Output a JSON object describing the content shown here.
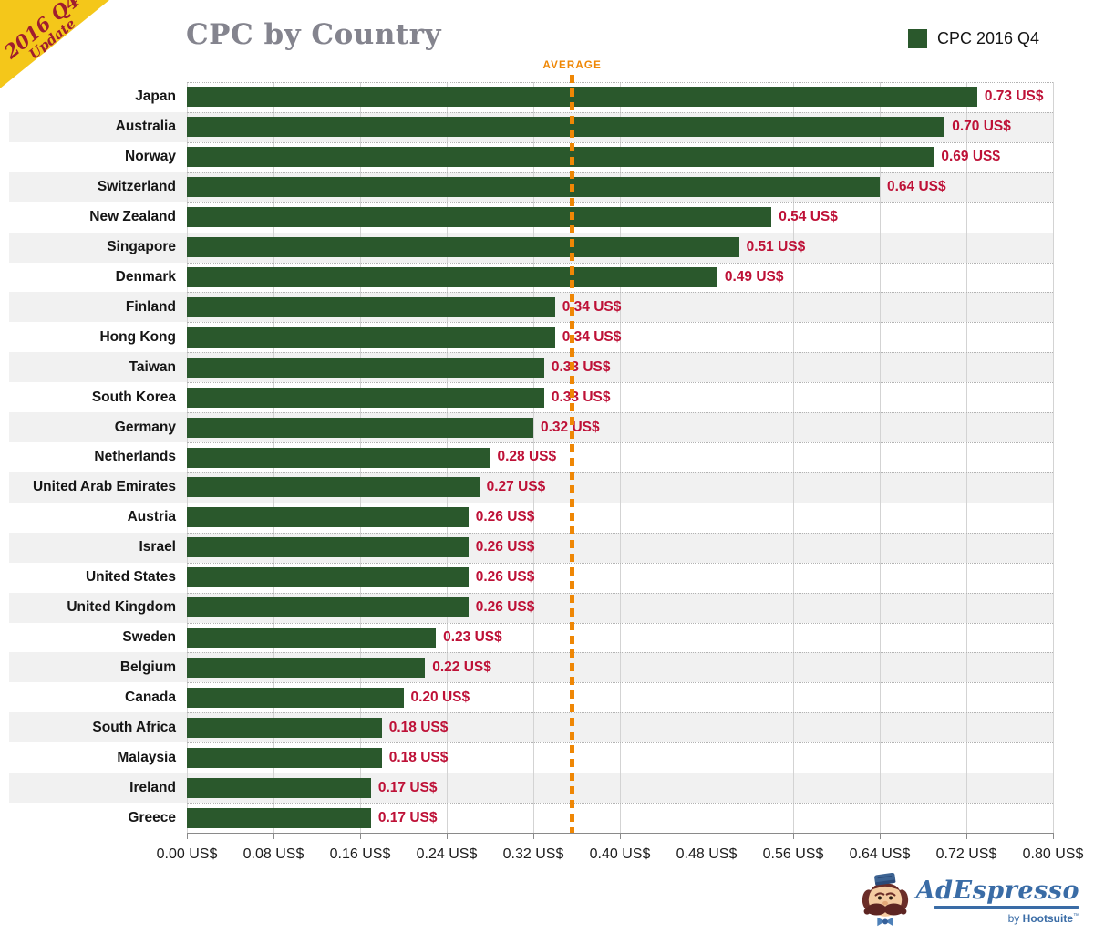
{
  "header": {
    "title": "CPC by Country"
  },
  "ribbon": {
    "line1": "2016 Q4",
    "line2": "Update"
  },
  "legend": {
    "label": "CPC 2016 Q4",
    "swatch_color": "#2a582c"
  },
  "chart_data": {
    "type": "bar",
    "orientation": "horizontal",
    "title": "CPC by Country",
    "legend_entries": [
      "CPC 2016 Q4"
    ],
    "legend_position": "top-right",
    "categories": [
      "Japan",
      "Australia",
      "Norway",
      "Switzerland",
      "New Zealand",
      "Singapore",
      "Denmark",
      "Finland",
      "Hong Kong",
      "Taiwan",
      "South Korea",
      "Germany",
      "Netherlands",
      "United Arab Emirates",
      "Austria",
      "Israel",
      "United States",
      "United Kingdom",
      "Sweden",
      "Belgium",
      "Canada",
      "South Africa",
      "Malaysia",
      "Ireland",
      "Greece"
    ],
    "values": [
      0.73,
      0.7,
      0.69,
      0.64,
      0.54,
      0.51,
      0.49,
      0.34,
      0.34,
      0.33,
      0.33,
      0.32,
      0.28,
      0.27,
      0.26,
      0.26,
      0.26,
      0.26,
      0.23,
      0.22,
      0.2,
      0.18,
      0.18,
      0.17,
      0.17
    ],
    "value_labels": [
      "0.73 US$",
      "0.70 US$",
      "0.69 US$",
      "0.64 US$",
      "0.54 US$",
      "0.51 US$",
      "0.49 US$",
      "0.34 US$",
      "0.34 US$",
      "0.33 US$",
      "0.33 US$",
      "0.32 US$",
      "0.28 US$",
      "0.27 US$",
      "0.26 US$",
      "0.26 US$",
      "0.26 US$",
      "0.26 US$",
      "0.23 US$",
      "0.22 US$",
      "0.20 US$",
      "0.18 US$",
      "0.18 US$",
      "0.17 US$",
      "0.17 US$"
    ],
    "x_tick_labels": [
      "0.00 US$",
      "0.08 US$",
      "0.16 US$",
      "0.24 US$",
      "0.32 US$",
      "0.40 US$",
      "0.48 US$",
      "0.56 US$",
      "0.64 US$",
      "0.72 US$",
      "0.80 US$"
    ],
    "xlim": [
      0,
      0.8
    ],
    "average": 0.356,
    "average_label": "AVERAGE",
    "grid": "vertical solid gridlines, dotted horizontal row separators, alternating row bands",
    "colors": {
      "bar": "#2a582c",
      "value_text": "#be1137",
      "average": "#ef8705",
      "row_band": "#f1f1f1"
    }
  },
  "footer_logo": {
    "brand": "AdEspresso",
    "by": "by",
    "sub": "Hootsuite",
    "mark": "™"
  }
}
